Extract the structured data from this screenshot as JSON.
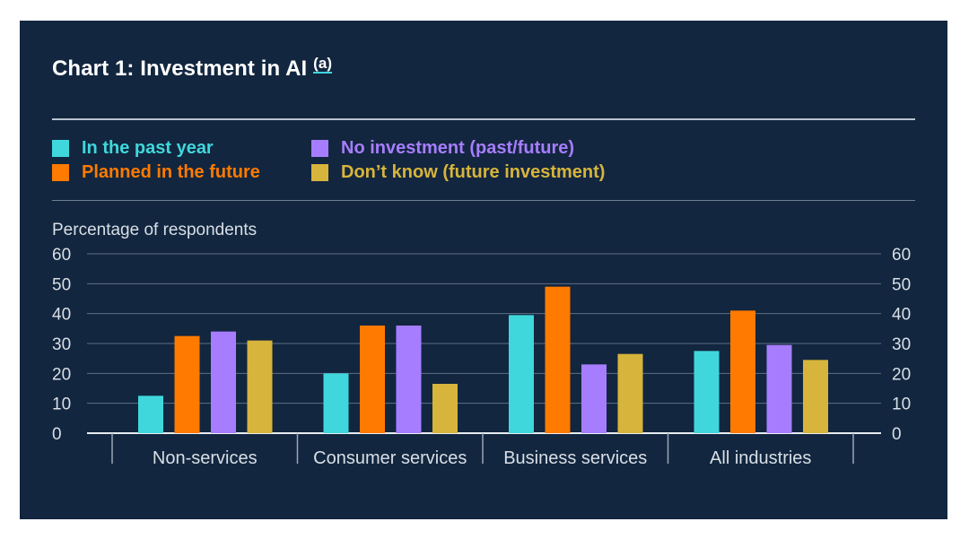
{
  "chart_data": {
    "type": "bar",
    "title": "Chart 1: Investment in AI",
    "title_footnote": "(a)",
    "ylabel": "Percentage of respondents",
    "ylim": [
      0,
      60
    ],
    "yticks": [
      "0",
      "10",
      "20",
      "30",
      "40",
      "50",
      "60"
    ],
    "grid": true,
    "legend_position": "top-left",
    "categories": [
      "Non-services",
      "Consumer services",
      "Business services",
      "All industries"
    ],
    "series": [
      {
        "name": "In the past year",
        "color": "#3fd7dc",
        "values": [
          12.5,
          20,
          39.5,
          27.5
        ]
      },
      {
        "name": "Planned in the future",
        "color": "#ff7a00",
        "values": [
          32.5,
          36,
          49,
          41
        ]
      },
      {
        "name": "No investment (past/future)",
        "color": "#a77dff",
        "values": [
          34,
          36,
          23,
          29.5
        ]
      },
      {
        "name": "Don’t know (future investment)",
        "color": "#d7b43b",
        "values": [
          31,
          16.5,
          26.5,
          24.5
        ]
      }
    ]
  }
}
